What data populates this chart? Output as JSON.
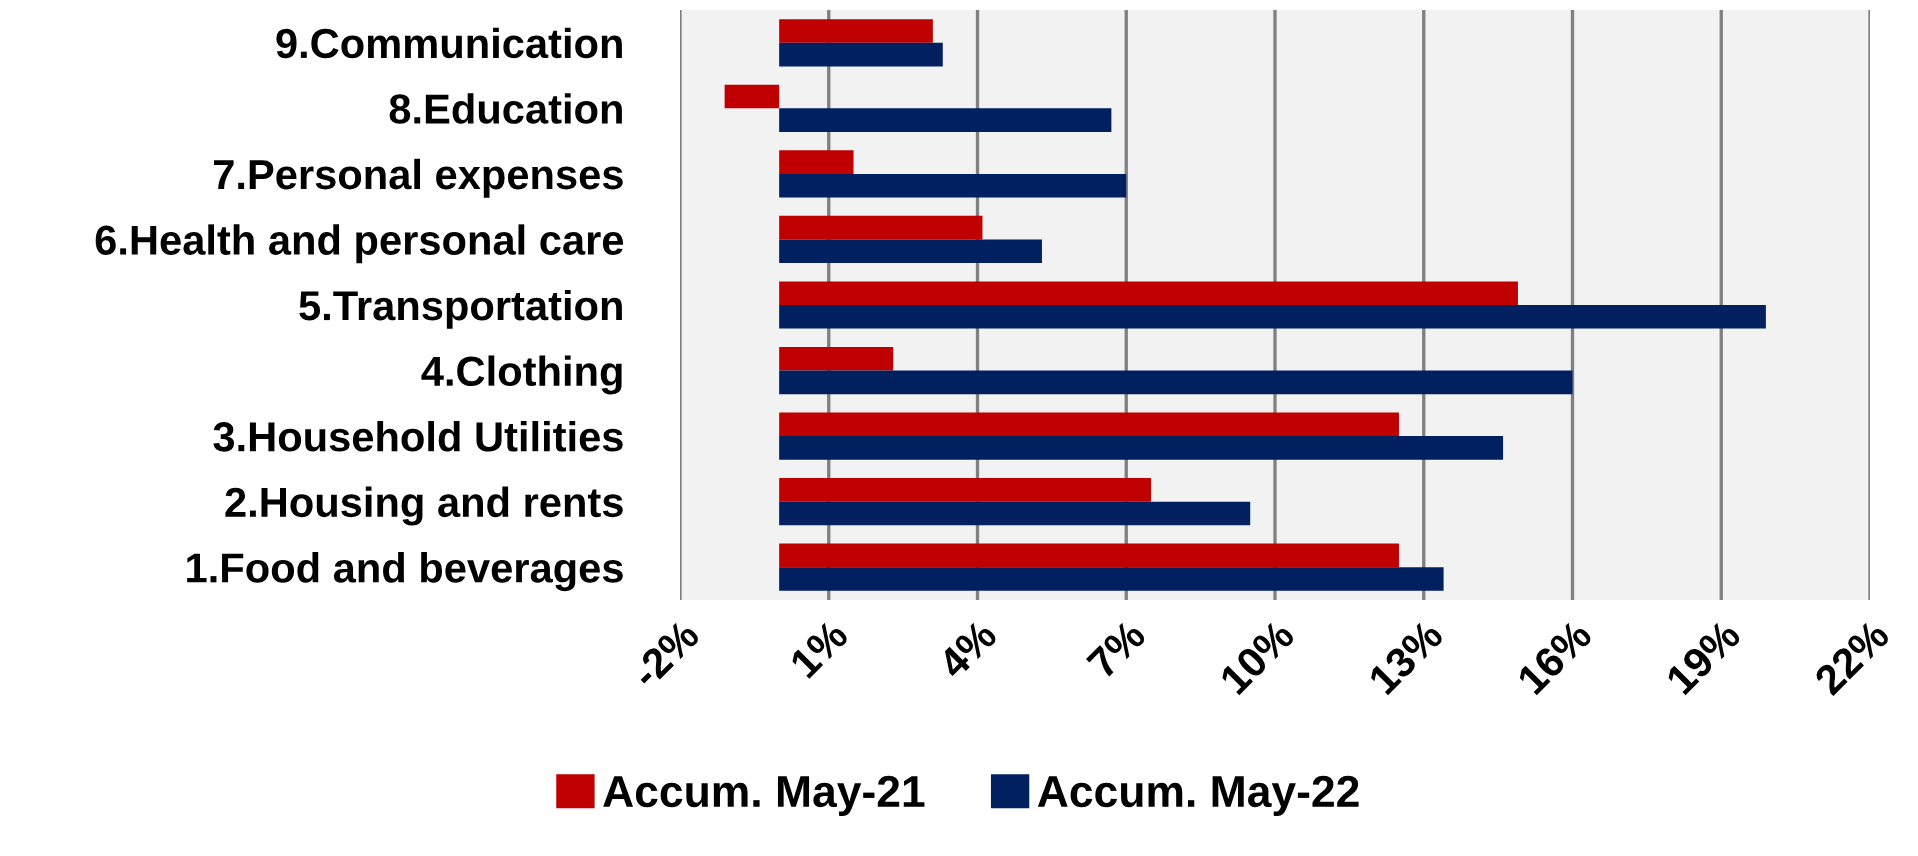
{
  "chart_data": {
    "type": "bar",
    "orientation": "horizontal",
    "categories": [
      "9.Communication",
      "8.Education",
      "7.Personal expenses",
      "6.Health and personal care",
      "5.Transportation",
      "4.Clothing",
      "3.Household Utilities",
      "2.Housing and rents",
      "1.Food and beverages"
    ],
    "series": [
      {
        "name": "Accum. May-21",
        "color": "#c00000",
        "values": [
          3.1,
          -1.1,
          1.5,
          4.1,
          14.9,
          2.3,
          12.5,
          7.5,
          12.5
        ]
      },
      {
        "name": "Accum. May-22",
        "color": "#002060",
        "values": [
          3.3,
          6.7,
          7.0,
          5.3,
          19.9,
          16.0,
          14.6,
          9.5,
          13.4
        ]
      }
    ],
    "xlim": [
      -2,
      22
    ],
    "xticks": [
      {
        "value": -2,
        "label": "-2%"
      },
      {
        "value": 1,
        "label": "1%"
      },
      {
        "value": 4,
        "label": "4%"
      },
      {
        "value": 7,
        "label": "7%"
      },
      {
        "value": 10,
        "label": "10%"
      },
      {
        "value": 13,
        "label": "13%"
      },
      {
        "value": 16,
        "label": "16%"
      },
      {
        "value": 19,
        "label": "19%"
      },
      {
        "value": 22,
        "label": "22%"
      }
    ],
    "grid": "x",
    "legend": "bottom"
  }
}
